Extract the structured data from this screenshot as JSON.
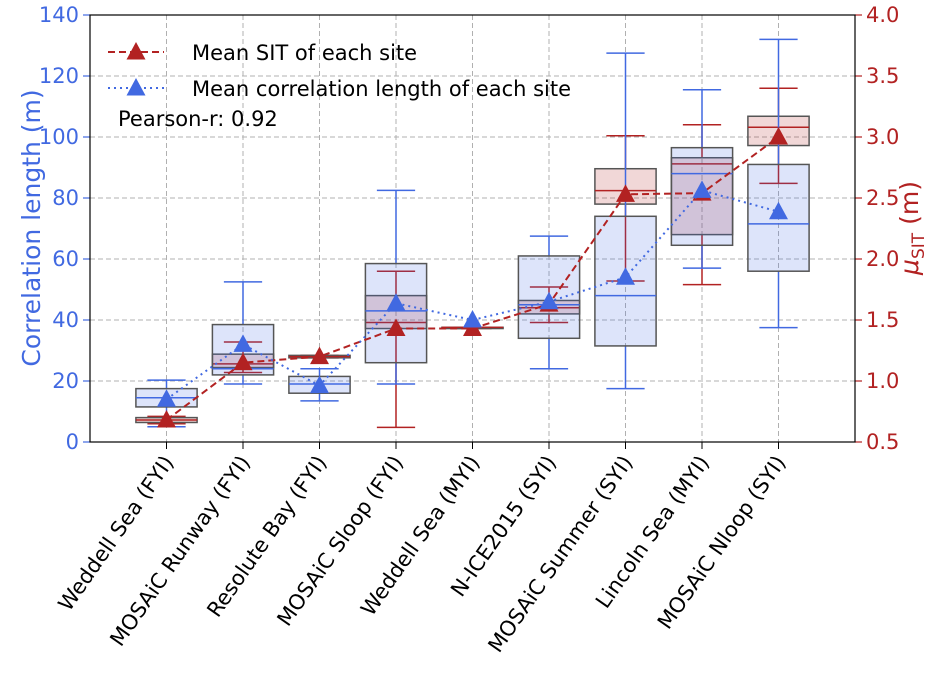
{
  "chart_data": {
    "type": "boxplot",
    "categories": [
      "Weddell Sea (FYI)",
      "MOSAiC Runway (FYI)",
      "Resolute Bay (FYI)",
      "MOSAiC Sloop (FYI)",
      "Weddell Sea (MYI)",
      "N-ICE2015 (SYI)",
      "MOSAiC Summer (SYI)",
      "Lincoln Sea (MYI)",
      "MOSAiC Nloop (SYI)"
    ],
    "ylabel": "Correlation length (m)",
    "y2label": [
      "μ",
      "SIT",
      " (m)"
    ],
    "ylim": [
      0,
      140
    ],
    "yticks": [
      0,
      20,
      40,
      60,
      80,
      100,
      120,
      140
    ],
    "y2lim": [
      0.5,
      4.0
    ],
    "y2ticks": [
      0.5,
      {
        "value": 1.0,
        "label": "1.0"
      },
      1.5,
      {
        "value": 2.0,
        "label": "2.0"
      },
      2.5,
      {
        "value": 3.0,
        "label": "3.0"
      },
      3.5,
      {
        "value": 4.0,
        "label": "4.0"
      }
    ],
    "grid": true,
    "legend": "upper left",
    "annotation": "Pearson-r: 0.92",
    "series": [
      {
        "name": "Mean SIT of each site",
        "color": "#b22222",
        "axis": "y2",
        "linestyle": "dashed",
        "values": [
          0.68,
          1.15,
          1.2,
          1.43,
          1.43,
          1.63,
          2.53,
          2.54,
          3.0
        ],
        "whislo": [
          0.65,
          1.07,
          1.19,
          0.62,
          1.43,
          1.48,
          1.82,
          1.79,
          2.62
        ],
        "q1": [
          0.66,
          1.11,
          1.19,
          1.43,
          1.43,
          1.55,
          2.45,
          2.2,
          2.93
        ],
        "med": [
          0.68,
          1.14,
          1.2,
          1.48,
          1.44,
          1.6,
          2.56,
          2.78,
          3.08
        ],
        "q3": [
          0.7,
          1.22,
          1.21,
          1.7,
          1.44,
          1.66,
          2.74,
          2.83,
          3.17
        ],
        "whishi": [
          0.71,
          1.32,
          1.21,
          1.9,
          1.44,
          1.77,
          3.01,
          3.1,
          3.4
        ]
      },
      {
        "name": "Mean correlation length of each site",
        "color": "#4169e1",
        "axis": "y",
        "linestyle": "dotted",
        "values": [
          14,
          32,
          18.5,
          45.5,
          40,
          46,
          54,
          82.5,
          75.5
        ],
        "whislo": [
          5,
          19,
          13.5,
          19,
          null,
          24,
          17.5,
          57,
          37.5
        ],
        "q1": [
          11.5,
          22,
          16,
          26,
          null,
          34,
          31.5,
          64.5,
          56
        ],
        "med": [
          14.5,
          24,
          19,
          43,
          null,
          45,
          48,
          88,
          71.5
        ],
        "q3": [
          17.5,
          38.5,
          21.5,
          58.5,
          null,
          61,
          74,
          96.5,
          91
        ],
        "whishi": [
          20.3,
          52.5,
          24,
          82.5,
          null,
          67.5,
          127.5,
          115.5,
          132
        ]
      }
    ]
  }
}
